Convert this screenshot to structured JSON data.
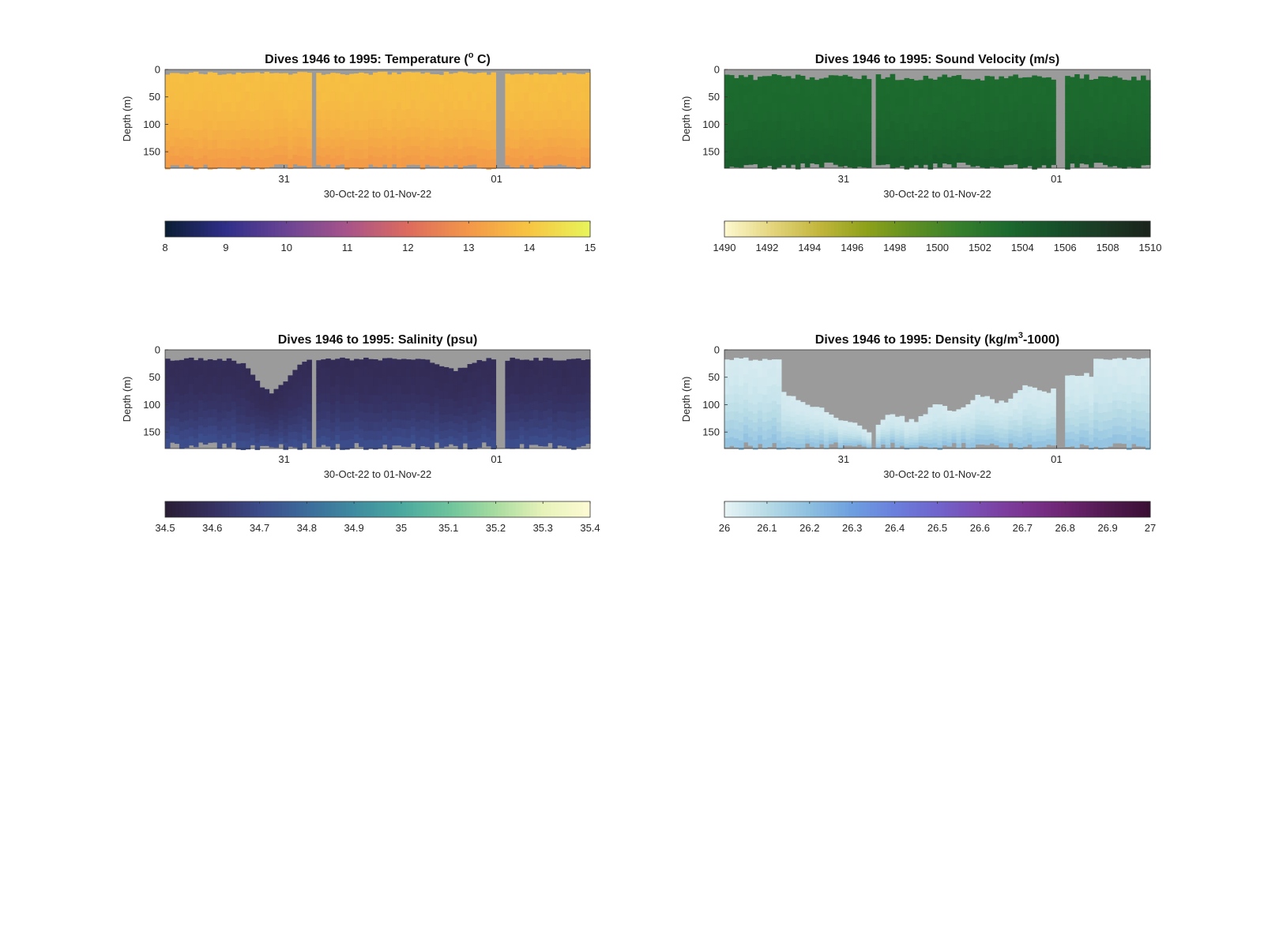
{
  "chart_data": [
    {
      "type": "heatmap",
      "title": "Dives 1946 to 1995: Temperature (",
      "title_sup": "o",
      "title_after": " C)",
      "xlabel": "30-Oct-22 to 01-Nov-22",
      "ylabel": "Depth (m)",
      "x_ticks": [
        "31",
        "01"
      ],
      "y_ticks": [
        0,
        50,
        100,
        150
      ],
      "ylim": [
        0,
        180
      ],
      "colorbar": {
        "ticks": [
          "8",
          "9",
          "10",
          "11",
          "12",
          "13",
          "14",
          "15"
        ],
        "range": [
          8,
          15
        ],
        "colors": [
          "#0b1d33",
          "#2f2f8a",
          "#6b4494",
          "#a8548a",
          "#dd6b5e",
          "#f39749",
          "#f7c542",
          "#e8f55a"
        ]
      },
      "field": {
        "surface_value": 13.85,
        "bottom_value": 13.0,
        "fill_color_hint": "#f5a040",
        "deep_color_hint": "#ea7a55",
        "top_gap_m": [
          4,
          10
        ],
        "bottom_depth_m": [
          172,
          182
        ],
        "gap_columns": [
          "between day 30 and 31",
          "at day 01 boundary"
        ]
      }
    },
    {
      "type": "heatmap",
      "title": "Dives 1946 to 1995: Sound Velocity (m/s)",
      "xlabel": "30-Oct-22 to 01-Nov-22",
      "ylabel": "Depth (m)",
      "x_ticks": [
        "31",
        "01"
      ],
      "y_ticks": [
        0,
        50,
        100,
        150
      ],
      "ylim": [
        0,
        180
      ],
      "colorbar": {
        "ticks": [
          "1490",
          "1492",
          "1494",
          "1496",
          "1498",
          "1500",
          "1502",
          "1504",
          "1506",
          "1508",
          "1510"
        ],
        "range": [
          1490,
          1510
        ],
        "colors": [
          "#fdf8cf",
          "#e4d57e",
          "#c2b63c",
          "#8ea11a",
          "#5e8f22",
          "#357f2c",
          "#1c6a2e",
          "#17502a",
          "#1b3a25",
          "#1a241b"
        ]
      },
      "field": {
        "surface_value": 1503.3,
        "bottom_value": 1504.6,
        "fill_color_hint": "#3a8a2a",
        "deep_color_hint": "#1e6a2c",
        "top_gap_m": [
          8,
          20
        ],
        "bottom_depth_m": [
          168,
          182
        ]
      }
    },
    {
      "type": "heatmap",
      "title": "Dives 1946 to 1995: Salinity (psu)",
      "xlabel": "30-Oct-22 to 01-Nov-22",
      "ylabel": "Depth (m)",
      "x_ticks": [
        "31",
        "01"
      ],
      "y_ticks": [
        0,
        50,
        100,
        150
      ],
      "ylim": [
        0,
        180
      ],
      "colorbar": {
        "ticks": [
          "34.5",
          "34.6",
          "34.7",
          "34.8",
          "34.9",
          "35",
          "35.1",
          "35.2",
          "35.3",
          "35.4"
        ],
        "range": [
          34.5,
          35.4
        ],
        "colors": [
          "#2a1d35",
          "#35305f",
          "#3c4b8a",
          "#3c6c9b",
          "#3f8ba0",
          "#4aa8a0",
          "#6dc39c",
          "#a8dca0",
          "#e7f2b9",
          "#fdfbd4"
        ]
      },
      "field": {
        "surface_value": 34.58,
        "bottom_value": 34.72,
        "fill_color_hint": "#2e2c55",
        "deep_color_hint": "#3b5a95",
        "top_gap_m": [
          12,
          75
        ],
        "bottom_depth_m": [
          168,
          182
        ]
      }
    },
    {
      "type": "heatmap",
      "title": "Dives 1946 to 1995: Density (kg/m",
      "title_sup": "3",
      "title_after": "-1000)",
      "xlabel": "30-Oct-22 to 01-Nov-22",
      "ylabel": "Depth (m)",
      "x_ticks": [
        "31",
        "01"
      ],
      "y_ticks": [
        0,
        50,
        100,
        150
      ],
      "ylim": [
        0,
        180
      ],
      "colorbar": {
        "ticks": [
          "26",
          "26.1",
          "26.2",
          "26.3",
          "26.4",
          "26.5",
          "26.6",
          "26.7",
          "26.8",
          "26.9",
          "27"
        ],
        "range": [
          26,
          27
        ],
        "colors": [
          "#e8f4f6",
          "#b7dbe6",
          "#8dbfe0",
          "#6d9fe0",
          "#6a7fdc",
          "#7064cc",
          "#7b4bb0",
          "#7c3592",
          "#6d2572",
          "#511a50",
          "#3a0f34"
        ]
      },
      "field": {
        "surface_value": 26.04,
        "bottom_value": 26.2,
        "fill_color_hint": "#dcecf2",
        "deep_color_hint": "#88b6e2",
        "top_gap_m": [
          12,
          165
        ],
        "bottom_depth_m": [
          168,
          182
        ]
      }
    }
  ]
}
